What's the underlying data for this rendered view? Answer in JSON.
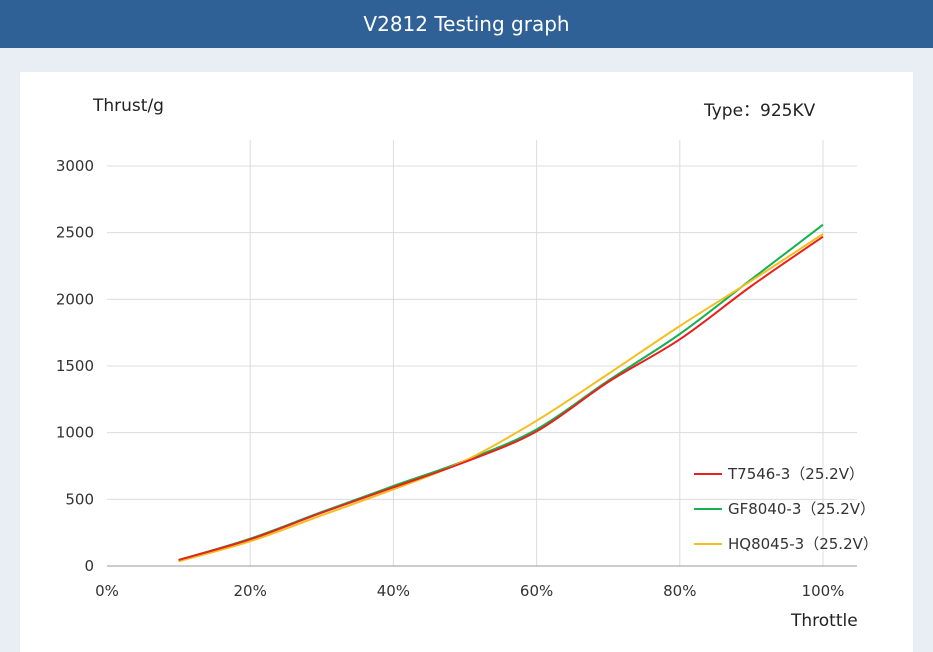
{
  "header": {
    "title": "V2812 Testing graph"
  },
  "chart_data": {
    "type": "line",
    "ylabel": "Thrust/g",
    "xlabel": "Throttle",
    "annotation": "Type：925KV",
    "xlim": [
      0,
      100
    ],
    "ylim": [
      0,
      3000
    ],
    "x_ticks": [
      {
        "value": 0,
        "label": "0%"
      },
      {
        "value": 20,
        "label": "20%"
      },
      {
        "value": 40,
        "label": "40%"
      },
      {
        "value": 60,
        "label": "60%"
      },
      {
        "value": 80,
        "label": "80%"
      },
      {
        "value": 100,
        "label": "100%"
      }
    ],
    "y_ticks": [
      {
        "value": 0,
        "label": "0"
      },
      {
        "value": 500,
        "label": "500"
      },
      {
        "value": 1000,
        "label": "1000"
      },
      {
        "value": 1500,
        "label": "1500"
      },
      {
        "value": 2000,
        "label": "2000"
      },
      {
        "value": 2500,
        "label": "2500"
      },
      {
        "value": 3000,
        "label": "3000"
      }
    ],
    "grid": true,
    "legend_position": "bottom-right",
    "x": [
      10,
      20,
      30,
      40,
      50,
      60,
      70,
      80,
      90,
      100
    ],
    "series": [
      {
        "name": "T7546-3（25.2V）",
        "color": "#e8211d",
        "values": [
          45,
          200,
          400,
          590,
          780,
          1010,
          1380,
          1700,
          2100,
          2470
        ]
      },
      {
        "name": "GF8040-3（25.2V）",
        "color": "#18b050",
        "values": [
          45,
          205,
          405,
          600,
          790,
          1025,
          1390,
          1740,
          2150,
          2560
        ]
      },
      {
        "name": "HQ8045-3（25.2V）",
        "color": "#f5be1e",
        "values": [
          35,
          185,
          380,
          575,
          790,
          1090,
          1440,
          1800,
          2140,
          2490
        ]
      }
    ]
  }
}
